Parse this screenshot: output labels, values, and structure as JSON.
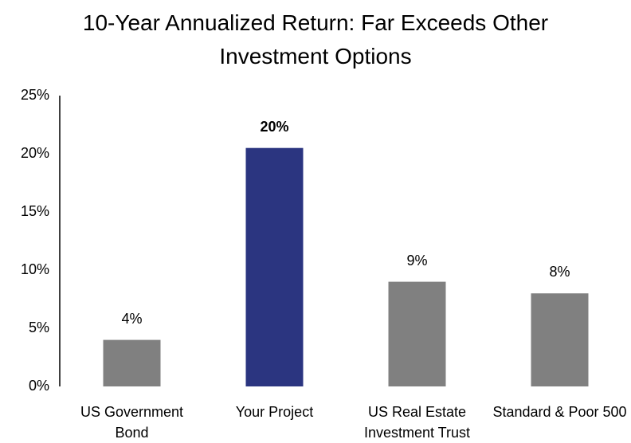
{
  "chart_data": {
    "type": "bar",
    "title": "10-Year Annualized Return: Far Exceeds Other Investment Options",
    "categories": [
      "US Government Bond",
      "Your Project",
      "US Real Estate Investment Trust",
      "Standard & Poor 500"
    ],
    "values": [
      4,
      20.5,
      9,
      8
    ],
    "value_labels": [
      "4%",
      "20%",
      "9%",
      "8%"
    ],
    "colors": [
      "#808080",
      "#2b3580",
      "#808080",
      "#808080"
    ],
    "bold_labels": [
      false,
      true,
      false,
      false
    ],
    "ylim": [
      0,
      25
    ],
    "yticks": [
      {
        "value": 0,
        "label": "0%"
      },
      {
        "value": 5,
        "label": "5%"
      },
      {
        "value": 10,
        "label": "10%"
      },
      {
        "value": 15,
        "label": "15%"
      },
      {
        "value": 20,
        "label": "20%"
      },
      {
        "value": 25,
        "label": "25%"
      }
    ],
    "grid": false
  }
}
